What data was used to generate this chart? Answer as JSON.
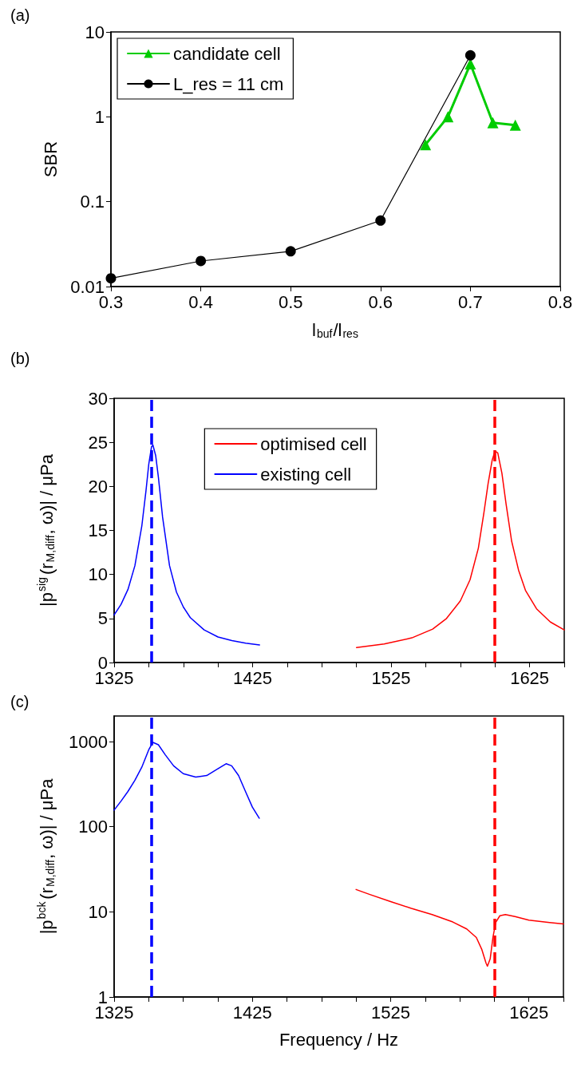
{
  "chart_data": [
    {
      "type": "line",
      "title": "(a)",
      "xlabel": "l$_{buf}$/l$_{res}$",
      "ylabel": "SBR",
      "log": "y",
      "legend": "top left",
      "xlim": [
        0.3,
        0.8
      ],
      "xticks": [
        0.3,
        0.4,
        0.5,
        0.6,
        0.7,
        0.8
      ],
      "ylim": [
        0.01,
        10
      ],
      "yticks": [
        0.01,
        0.1,
        1,
        10
      ],
      "series": [
        {
          "name": "candidate cell",
          "color": "#00cc00",
          "marker": "triangle",
          "line_style": "solid",
          "x": [
            0.65,
            0.675,
            0.7,
            0.725,
            0.75
          ],
          "values": [
            0.47,
            1.0,
            4.2,
            0.85,
            0.8
          ]
        },
        {
          "name": "L_res = 11 cm",
          "color": "#000000",
          "marker": "circle",
          "line_style": "solid",
          "x": [
            0.3,
            0.4,
            0.5,
            0.6,
            0.7
          ],
          "values": [
            0.0125,
            0.02,
            0.026,
            0.06,
            5.3
          ]
        }
      ]
    },
    {
      "type": "line",
      "title": "(b)",
      "ylabel": "|p$^{sig}$(r$_{M,diff}$, ω)| / μPa",
      "legend": "top",
      "xlim": [
        1325,
        1650
      ],
      "xticks": [
        1325,
        {
          "value": 1350,
          "label": null
        },
        {
          "value": 1375,
          "label": null
        },
        {
          "value": 1400,
          "label": null
        },
        1425,
        {
          "value": 1450,
          "label": null
        },
        {
          "value": 1475,
          "label": null
        },
        {
          "value": 1500,
          "label": null
        },
        1525,
        {
          "value": 1550,
          "label": null
        },
        {
          "value": 1575,
          "label": null
        },
        {
          "value": 1600,
          "label": null
        },
        1625,
        {
          "value": 1650,
          "label": null
        }
      ],
      "ylim": [
        0,
        30
      ],
      "yticks": [
        0,
        5,
        10,
        15,
        20,
        25,
        30
      ],
      "series": [
        {
          "name": "optimised cell",
          "color": "#ff0000",
          "line_style": "solid",
          "x": [
            1500,
            1520,
            1540,
            1555,
            1565,
            1575,
            1582,
            1588,
            1592,
            1595,
            1598,
            1600,
            1602,
            1605,
            1608,
            1612,
            1617,
            1622,
            1630,
            1640,
            1650
          ],
          "values": [
            1.7,
            2.1,
            2.8,
            3.8,
            5,
            7,
            9.4,
            13,
            17,
            20.3,
            23,
            24,
            23.8,
            21.5,
            18,
            13.8,
            10.5,
            8.2,
            6.1,
            4.6,
            3.7
          ]
        },
        {
          "name": "existing cell",
          "color": "#0000ff",
          "line_style": "solid",
          "x": [
            1325,
            1330,
            1335,
            1340,
            1345,
            1348,
            1350,
            1352,
            1353,
            1355,
            1357,
            1360,
            1365,
            1370,
            1375,
            1380,
            1390,
            1400,
            1410,
            1420,
            1430
          ],
          "values": [
            5.4,
            6.6,
            8.3,
            11,
            15.5,
            19.5,
            22.5,
            24.5,
            24.7,
            23.5,
            21,
            16.5,
            11,
            8,
            6.3,
            5.1,
            3.7,
            2.9,
            2.5,
            2.2,
            2.0
          ]
        }
      ],
      "ref_lines": [
        {
          "axis": "x",
          "value": 1352,
          "label": null,
          "color": "#0000ff",
          "line_style": "dashed"
        },
        {
          "axis": "x",
          "value": 1600,
          "label": null,
          "color": "#ff0000",
          "line_style": "dashed"
        }
      ]
    },
    {
      "type": "line",
      "title": "(c)",
      "xlabel": "Frequency / Hz",
      "ylabel": "|p$^{bck}$(r$_{M,diff}$, ω)| / μPa",
      "log": "y",
      "xlim": [
        1325,
        1650
      ],
      "xticks": [
        1325,
        {
          "value": 1350,
          "label": null
        },
        {
          "value": 1375,
          "label": null
        },
        {
          "value": 1400,
          "label": null
        },
        1425,
        {
          "value": 1450,
          "label": null
        },
        {
          "value": 1475,
          "label": null
        },
        {
          "value": 1500,
          "label": null
        },
        1525,
        {
          "value": 1550,
          "label": null
        },
        {
          "value": 1575,
          "label": null
        },
        {
          "value": 1600,
          "label": null
        },
        1625,
        {
          "value": 1650,
          "label": null
        }
      ],
      "ylim": [
        1,
        2000
      ],
      "yticks": [
        1,
        10,
        100,
        1000
      ],
      "series": [
        {
          "color": "#0000ff",
          "line_style": "solid",
          "x": [
            1325,
            1330,
            1335,
            1340,
            1345,
            1350,
            1353,
            1357,
            1362,
            1368,
            1375,
            1384,
            1392,
            1400,
            1406,
            1410,
            1415,
            1420,
            1425,
            1430
          ],
          "values": [
            157,
            200,
            260,
            350,
            500,
            800,
            980,
            920,
            700,
            520,
            420,
            383,
            400,
            480,
            550,
            520,
            400,
            260,
            170,
            126
          ]
        },
        {
          "color": "#ff0000",
          "line_style": "solid",
          "x": [
            1500,
            1510,
            1525,
            1540,
            1555,
            1570,
            1580,
            1587,
            1591,
            1594,
            1595,
            1597,
            1599,
            1601,
            1604,
            1608,
            1615,
            1625,
            1640,
            1650
          ],
          "values": [
            18.3,
            16,
            13.2,
            11,
            9.3,
            7.6,
            6.3,
            5,
            3.6,
            2.5,
            2.3,
            2.8,
            5,
            7.5,
            9,
            9.3,
            8.8,
            8.0,
            7.5,
            7.2
          ]
        }
      ],
      "ref_lines": [
        {
          "axis": "x",
          "value": 1352,
          "label": null,
          "color": "#0000ff",
          "line_style": "dashed"
        },
        {
          "axis": "x",
          "value": 1600,
          "label": null,
          "color": "#ff0000",
          "line_style": "dashed"
        }
      ]
    }
  ]
}
